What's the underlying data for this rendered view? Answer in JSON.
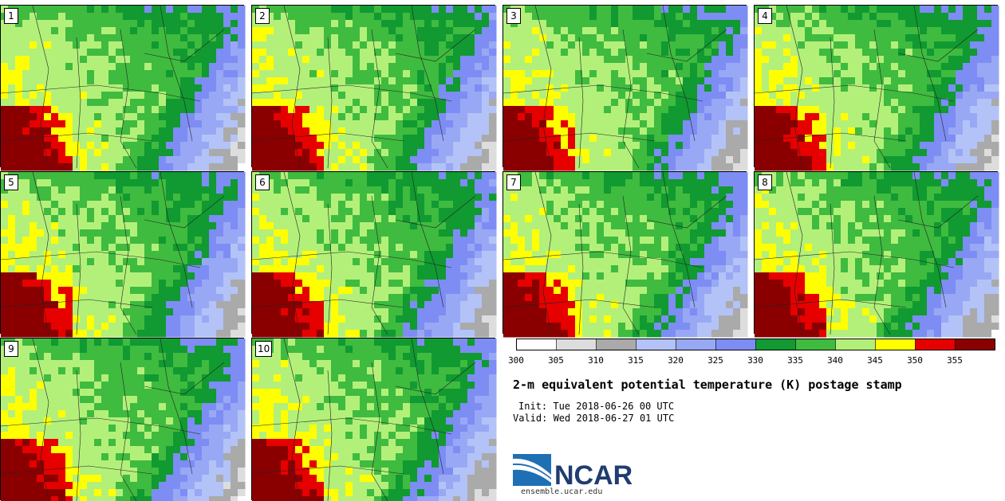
{
  "chart_data": {
    "type": "heatmap",
    "title": "2-m equivalent potential temperature (K) postage stamp",
    "init": "Init: Tue 2018-06-26 00 UTC",
    "valid": "Valid: Wed 2018-06-27 01 UTC",
    "members": [
      "1",
      "2",
      "3",
      "4",
      "5",
      "6",
      "7",
      "8",
      "9",
      "10"
    ],
    "colorbar": {
      "bins": [
        {
          "lo": 300,
          "hi": 305,
          "color": "#ffffff"
        },
        {
          "lo": 305,
          "hi": 310,
          "color": "#dddddd"
        },
        {
          "lo": 310,
          "hi": 315,
          "color": "#aaaaaa"
        },
        {
          "lo": 315,
          "hi": 320,
          "color": "#b3c3f7"
        },
        {
          "lo": 320,
          "hi": 325,
          "color": "#98a8f5"
        },
        {
          "lo": 325,
          "hi": 330,
          "color": "#7d8df3"
        },
        {
          "lo": 330,
          "hi": 335,
          "color": "#109a31"
        },
        {
          "lo": 335,
          "hi": 340,
          "color": "#3fbb3f"
        },
        {
          "lo": 340,
          "hi": 345,
          "color": "#b3f07a"
        },
        {
          "lo": 345,
          "hi": 350,
          "color": "#ffff00"
        },
        {
          "lo": 350,
          "hi": 355,
          "color": "#e60000"
        },
        {
          "lo": 355,
          "hi": 360,
          "color": "#8a0000"
        }
      ],
      "tick_labels": [
        "300",
        "305",
        "310",
        "315",
        "320",
        "325",
        "330",
        "335",
        "340",
        "345",
        "350",
        "355"
      ]
    }
  },
  "footer": {
    "logo_text": "NCAR",
    "site": "ensemble.ucar.edu"
  }
}
